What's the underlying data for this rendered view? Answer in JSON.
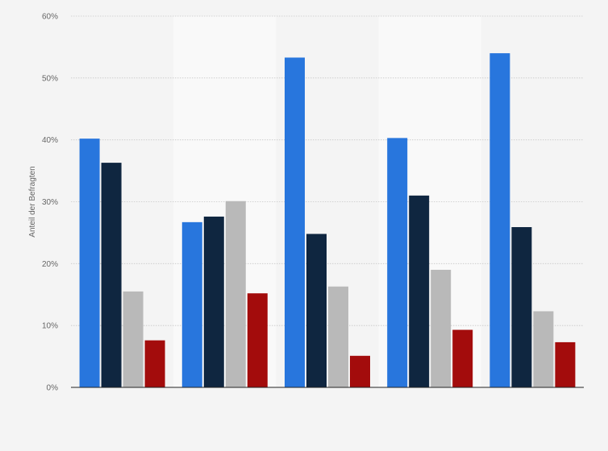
{
  "chart_data": {
    "type": "bar",
    "title": "",
    "xlabel": "",
    "ylabel": "Anteil der Befragten",
    "categories": [
      "",
      "",
      "",
      "",
      ""
    ],
    "series": [
      {
        "values": [
          40.2,
          26.7,
          53.3,
          40.3,
          54.0
        ]
      },
      {
        "values": [
          36.3,
          27.6,
          24.8,
          31.0,
          25.9
        ]
      },
      {
        "values": [
          15.5,
          30.1,
          16.3,
          19.0,
          12.3
        ]
      },
      {
        "values": [
          7.6,
          15.2,
          5.1,
          9.3,
          7.3
        ]
      }
    ],
    "ylim": [
      0,
      60
    ],
    "yticks": [
      0,
      10,
      20,
      30,
      40,
      50,
      60
    ],
    "ytick_labels": [
      "0%",
      "10%",
      "20%",
      "30%",
      "40%",
      "50%",
      "60%"
    ],
    "grid": true,
    "colors": [
      "#2876dd",
      "#0f2640",
      "#b9b9b9",
      "#a30c0c"
    ],
    "band_color": "#f9f9f9"
  }
}
